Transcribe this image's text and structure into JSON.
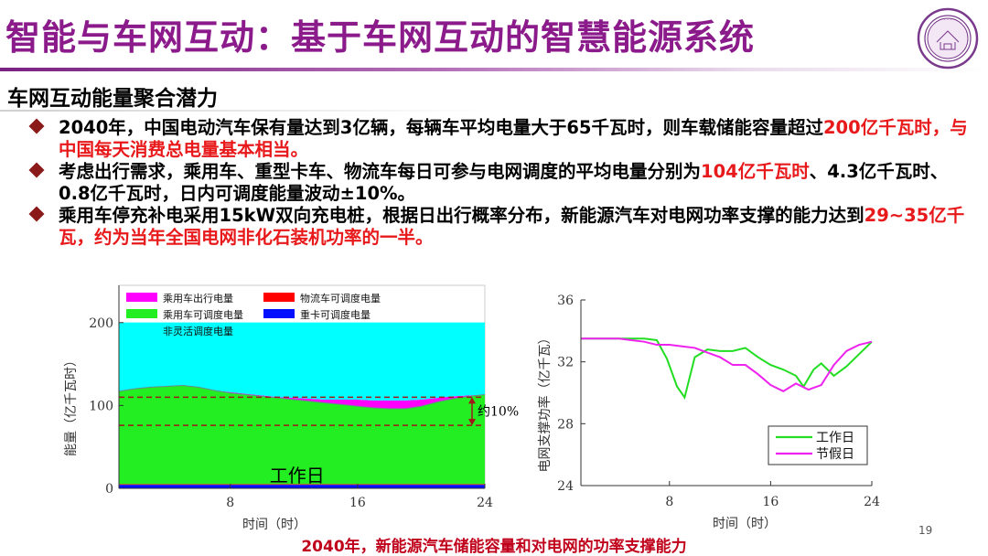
{
  "title": "智能与车网互动：基于车网互动的智慧能源系统",
  "subtitle": "车网互动能量聚合潜力",
  "bullets": [
    {
      "parts": [
        {
          "text": "2040年，中国电动汽车保有量达到3亿辆，每辆车平均电量大于65千瓦时，则车载储能容量超过",
          "red": false
        },
        {
          "text": "200亿千瓦时，与中国每天消费总电量基本相当。",
          "red": true
        }
      ]
    },
    {
      "parts": [
        {
          "text": "考虑出行需求，乘用车、重型卡车、物流车每日可参与电网调度的平均电量分别为",
          "red": false
        },
        {
          "text": "104亿千瓦时",
          "red": true
        },
        {
          "text": "、4.3亿千瓦时、0.8亿千瓦时，日内可调度能量波动±10%。",
          "red": false
        }
      ]
    },
    {
      "parts": [
        {
          "text": "乘用车停充补电采用15kW双向充电桩，根据日出行概率分布，新能源汽车对电网功率支撑的能力达到",
          "red": false
        },
        {
          "text": "29~35亿千瓦",
          "red": true
        },
        {
          "text": "，约为当年全国电网非化石装机功率的一半。",
          "red": true
        }
      ]
    }
  ],
  "caption": "2040年，新能源汽车储能容量和对电网的功率支撑能力",
  "page_number": "19",
  "chart_data": [
    {
      "type": "area",
      "xlabel": "时间（时）",
      "ylabel": "能量（亿千瓦时）",
      "xticks": [
        "8",
        "16",
        "24"
      ],
      "yticks": [
        "0",
        "100",
        "200"
      ],
      "xlim": [
        1,
        24
      ],
      "ylim": [
        0,
        245
      ],
      "x": [
        1,
        2,
        3,
        4,
        5,
        6,
        7,
        8,
        9,
        10,
        11,
        12,
        13,
        14,
        15,
        16,
        17,
        18,
        19,
        20,
        21,
        22,
        23,
        24
      ],
      "series": [
        {
          "name": "重卡可调度电量",
          "color": "#0010ff",
          "values": [
            4.3,
            4.3,
            4.3,
            4.3,
            4.3,
            4.3,
            4.3,
            4.3,
            4.3,
            4.3,
            4.3,
            4.3,
            4.3,
            4.3,
            4.3,
            4.3,
            4.3,
            4.3,
            4.3,
            4.3,
            4.3,
            4.3,
            4.3,
            4.3
          ]
        },
        {
          "name": "物流车可调度电量",
          "color": "#ff0000",
          "values": [
            0.8,
            0.8,
            0.8,
            0.8,
            0.8,
            0.8,
            0.8,
            0.8,
            0.8,
            0.8,
            0.8,
            0.8,
            0.8,
            0.8,
            0.8,
            0.8,
            0.8,
            0.8,
            0.8,
            0.8,
            0.8,
            0.8,
            0.8,
            0.8
          ]
        },
        {
          "name": "乘用车可调度电量",
          "color": "#22ee22",
          "values": [
            112,
            115,
            117,
            118,
            119,
            117,
            113,
            110,
            108,
            106,
            104,
            102,
            100,
            98,
            96,
            94,
            92,
            91,
            91,
            94,
            99,
            103,
            106,
            108
          ]
        },
        {
          "name": "乘用车出行电量",
          "color": "#ff00ff",
          "values": [
            0,
            0,
            0,
            0,
            0,
            0,
            0,
            1,
            1,
            1,
            1,
            2,
            3,
            4,
            6,
            8,
            9,
            10,
            10,
            8,
            5,
            3,
            1,
            0
          ]
        },
        {
          "name": "非灵活调度电量",
          "color": "#00ffff",
          "values": [
            83,
            80,
            78,
            77,
            76,
            78,
            82,
            84,
            86,
            88,
            90,
            91,
            92,
            93,
            93,
            93,
            94,
            94,
            94,
            93,
            91,
            89,
            88,
            87
          ]
        }
      ],
      "total": 200,
      "dashed_lines": [
        110,
        76
      ],
      "annotation": "约10%",
      "inner_label": "工作日",
      "legend_position": "top-left"
    },
    {
      "type": "line",
      "xlabel": "时间（时）",
      "ylabel": "电网支撑功率（亿千瓦）",
      "xticks": [
        "8",
        "16",
        "24"
      ],
      "yticks": [
        "24",
        "28",
        "32",
        "36"
      ],
      "xlim": [
        1,
        24
      ],
      "ylim": [
        24,
        36
      ],
      "series": [
        {
          "name": "工作日",
          "color": "#22dd22",
          "x": [
            1,
            2,
            3,
            4,
            5,
            6,
            7,
            7.8,
            8.6,
            9.2,
            10.0,
            11,
            12,
            13,
            14,
            15,
            16,
            17,
            18,
            18.6,
            19.4,
            20,
            21,
            22,
            23,
            24
          ],
          "values": [
            33.5,
            33.5,
            33.5,
            33.5,
            33.5,
            33.5,
            33.4,
            32.2,
            30.4,
            29.7,
            32.3,
            32.8,
            32.7,
            32.7,
            32.9,
            32.3,
            31.8,
            31.5,
            31.1,
            30.4,
            31.5,
            31.9,
            31.1,
            31.7,
            32.5,
            33.3
          ]
        },
        {
          "name": "节假日",
          "color": "#ee22ee",
          "x": [
            1,
            2,
            3,
            4,
            5,
            6,
            7,
            8,
            9,
            10,
            11,
            12,
            13,
            14,
            15,
            16,
            17,
            18,
            19,
            20,
            21,
            22,
            23,
            24
          ],
          "values": [
            33.5,
            33.5,
            33.5,
            33.5,
            33.4,
            33.3,
            33.1,
            33.1,
            33.0,
            32.9,
            32.6,
            32.3,
            31.8,
            31.8,
            31.2,
            30.5,
            30.1,
            30.6,
            30.2,
            30.5,
            31.8,
            32.7,
            33.1,
            33.3
          ]
        }
      ],
      "legend_position": "bottom-right"
    }
  ],
  "colors": {
    "title": "#8b1a8b",
    "accent_red": "#e8191b",
    "marker": "#8b1a1a",
    "caption": "#c0001a"
  }
}
